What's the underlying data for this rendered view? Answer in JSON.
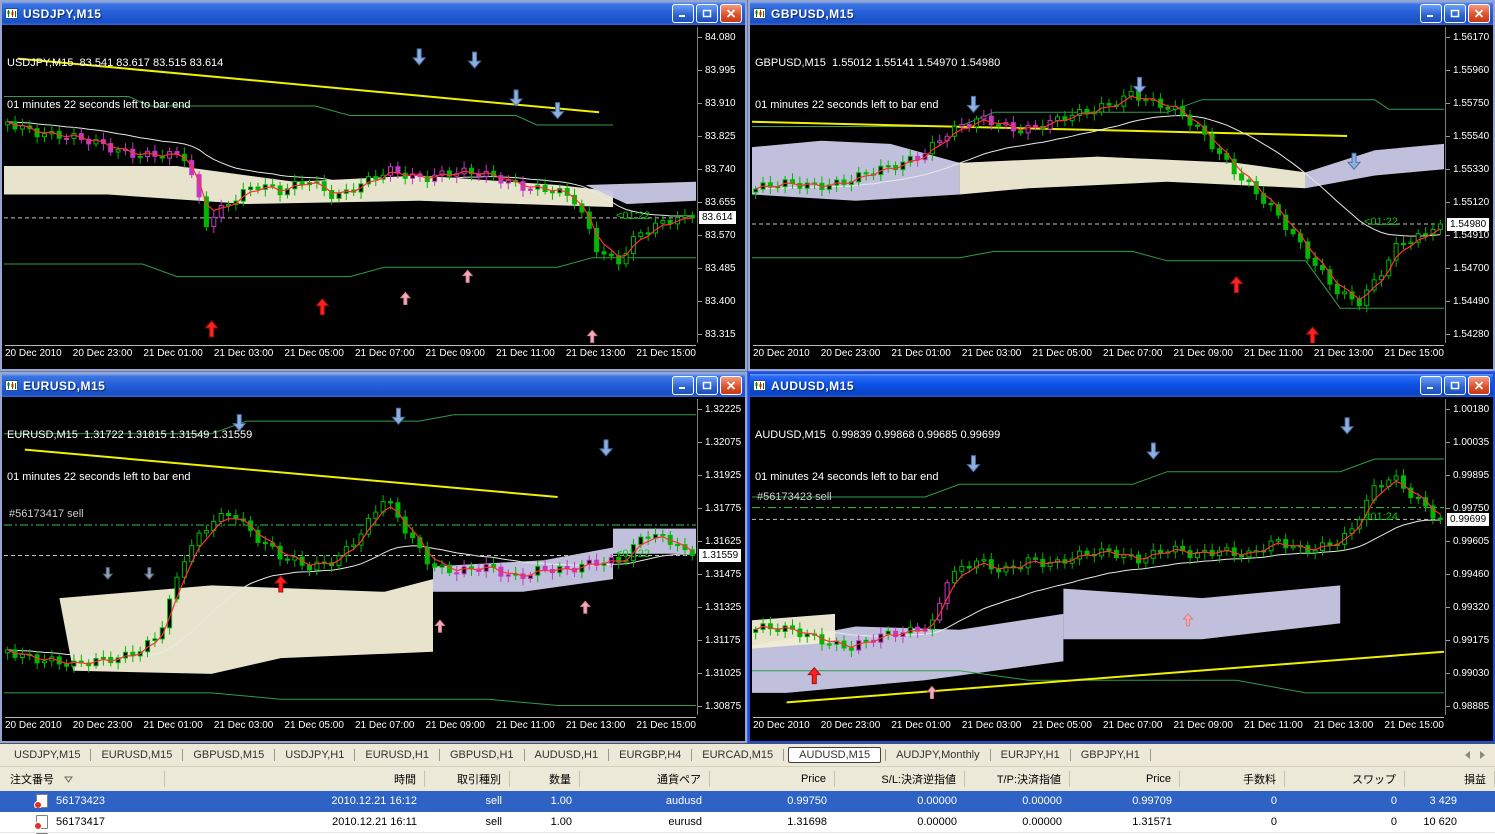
{
  "shared": {
    "time_labels": [
      "20 Dec 2010",
      "20 Dec 23:00",
      "21 Dec 01:00",
      "21 Dec 03:00",
      "21 Dec 05:00",
      "21 Dec 07:00",
      "21 Dec 09:00",
      "21 Dec 11:00",
      "21 Dec 13:00",
      "21 Dec 15:00"
    ]
  },
  "windows": [
    {
      "title": "USDJPY,M15",
      "active": false,
      "info1": "USDJPY,M15  83.541 83.617 83.515 83.614",
      "info2": "01 minutes 22 seconds left to bar end",
      "countdown": "<01:22",
      "current_price": "83.614",
      "price_ticks": [
        "84.080",
        "83.995",
        "83.910",
        "83.825",
        "83.740",
        "83.655",
        "83.570",
        "83.485",
        "83.400",
        "83.315"
      ]
    },
    {
      "title": "GBPUSD,M15",
      "active": false,
      "info1": "GBPUSD,M15  1.55012 1.55141 1.54970 1.54980",
      "info2": "01 minutes 22 seconds left to bar end",
      "countdown": "<01:22",
      "current_price": "1.54980",
      "price_ticks": [
        "1.56170",
        "1.55960",
        "1.55750",
        "1.55540",
        "1.55330",
        "1.55120",
        "1.54910",
        "1.54700",
        "1.54490",
        "1.54280"
      ]
    },
    {
      "title": "EURUSD,M15",
      "active": false,
      "info1": "EURUSD,M15  1.31722 1.31815 1.31549 1.31559",
      "info2": "01 minutes 22 seconds left to bar end",
      "countdown": "<01:22",
      "current_price": "1.31559",
      "order": {
        "label": "#56173417 sell",
        "price": "1.31698"
      },
      "price_ticks": [
        "1.32225",
        "1.32075",
        "1.31925",
        "1.31775",
        "1.31625",
        "1.31475",
        "1.31325",
        "1.31175",
        "1.31025",
        "1.30875"
      ]
    },
    {
      "title": "AUDUSD,M15",
      "active": true,
      "info1": "AUDUSD,M15  0.99839 0.99868 0.99685 0.99699",
      "info2": "01 minutes 24 seconds left to bar end",
      "countdown": "<01:24",
      "current_price": "0.99699",
      "order": {
        "label": "#56173423 sell",
        "price": "0.99750"
      },
      "price_ticks": [
        "1.00180",
        "1.00035",
        "0.99895",
        "0.99750",
        "0.99605",
        "0.99460",
        "0.99320",
        "0.99175",
        "0.99030",
        "0.98885"
      ]
    }
  ],
  "terminal": {
    "tabs": [
      {
        "label": "USDJPY,M15"
      },
      {
        "label": "EURUSD,M15"
      },
      {
        "label": "GBPUSD,M15"
      },
      {
        "label": "USDJPY,H1"
      },
      {
        "label": "EURUSD,H1"
      },
      {
        "label": "GBPUSD,H1"
      },
      {
        "label": "AUDUSD,H1"
      },
      {
        "label": "EURGBP,H4"
      },
      {
        "label": "EURCAD,M15"
      },
      {
        "label": "AUDUSD,M15"
      },
      {
        "label": "AUDJPY,Monthly"
      },
      {
        "label": "EURJPY,H1"
      },
      {
        "label": "GBPJPY,H1"
      }
    ],
    "active_tab": "AUDUSD,M15",
    "columns": [
      "注文番号",
      "時間",
      "取引種別",
      "数量",
      "通貨ペア",
      "Price",
      "S/L:決済逆指値",
      "T/P:決済指値",
      "Price",
      "手数料",
      "スワップ",
      "損益"
    ],
    "orders": [
      {
        "id": "56173423",
        "time": "2010.12.21 16:12",
        "type": "sell",
        "volume": "1.00",
        "symbol": "audusd",
        "price": "0.99750",
        "sl": "0.00000",
        "tp": "0.00000",
        "price2": "0.99709",
        "commission": "0",
        "swap": "0",
        "profit": "3 429",
        "selected": true
      },
      {
        "id": "56173417",
        "time": "2010.12.21 16:11",
        "type": "sell",
        "volume": "1.00",
        "symbol": "eurusd",
        "price": "1.31698",
        "sl": "0.00000",
        "tp": "0.00000",
        "price2": "1.31571",
        "commission": "0",
        "swap": "0",
        "profit": "10 620",
        "selected": false
      }
    ]
  },
  "colors": {
    "titlebar_active": "#0d52e8",
    "titlebar_inactive": "#2560da",
    "selected_row": "#2e62c4",
    "panel_bg": "#ece9d8",
    "chart_bg": "#000000",
    "candle_green": "#00b800",
    "signal_red": "#ff2020",
    "arrow_blue": "#8fb0dc",
    "arrow_pink": "#f2aebc",
    "cloud_beige": "#f1ecd4",
    "cloud_lavender": "#c8c8e6",
    "trend_yellow": "#f0f000",
    "countdown_green": "#00cc00"
  }
}
